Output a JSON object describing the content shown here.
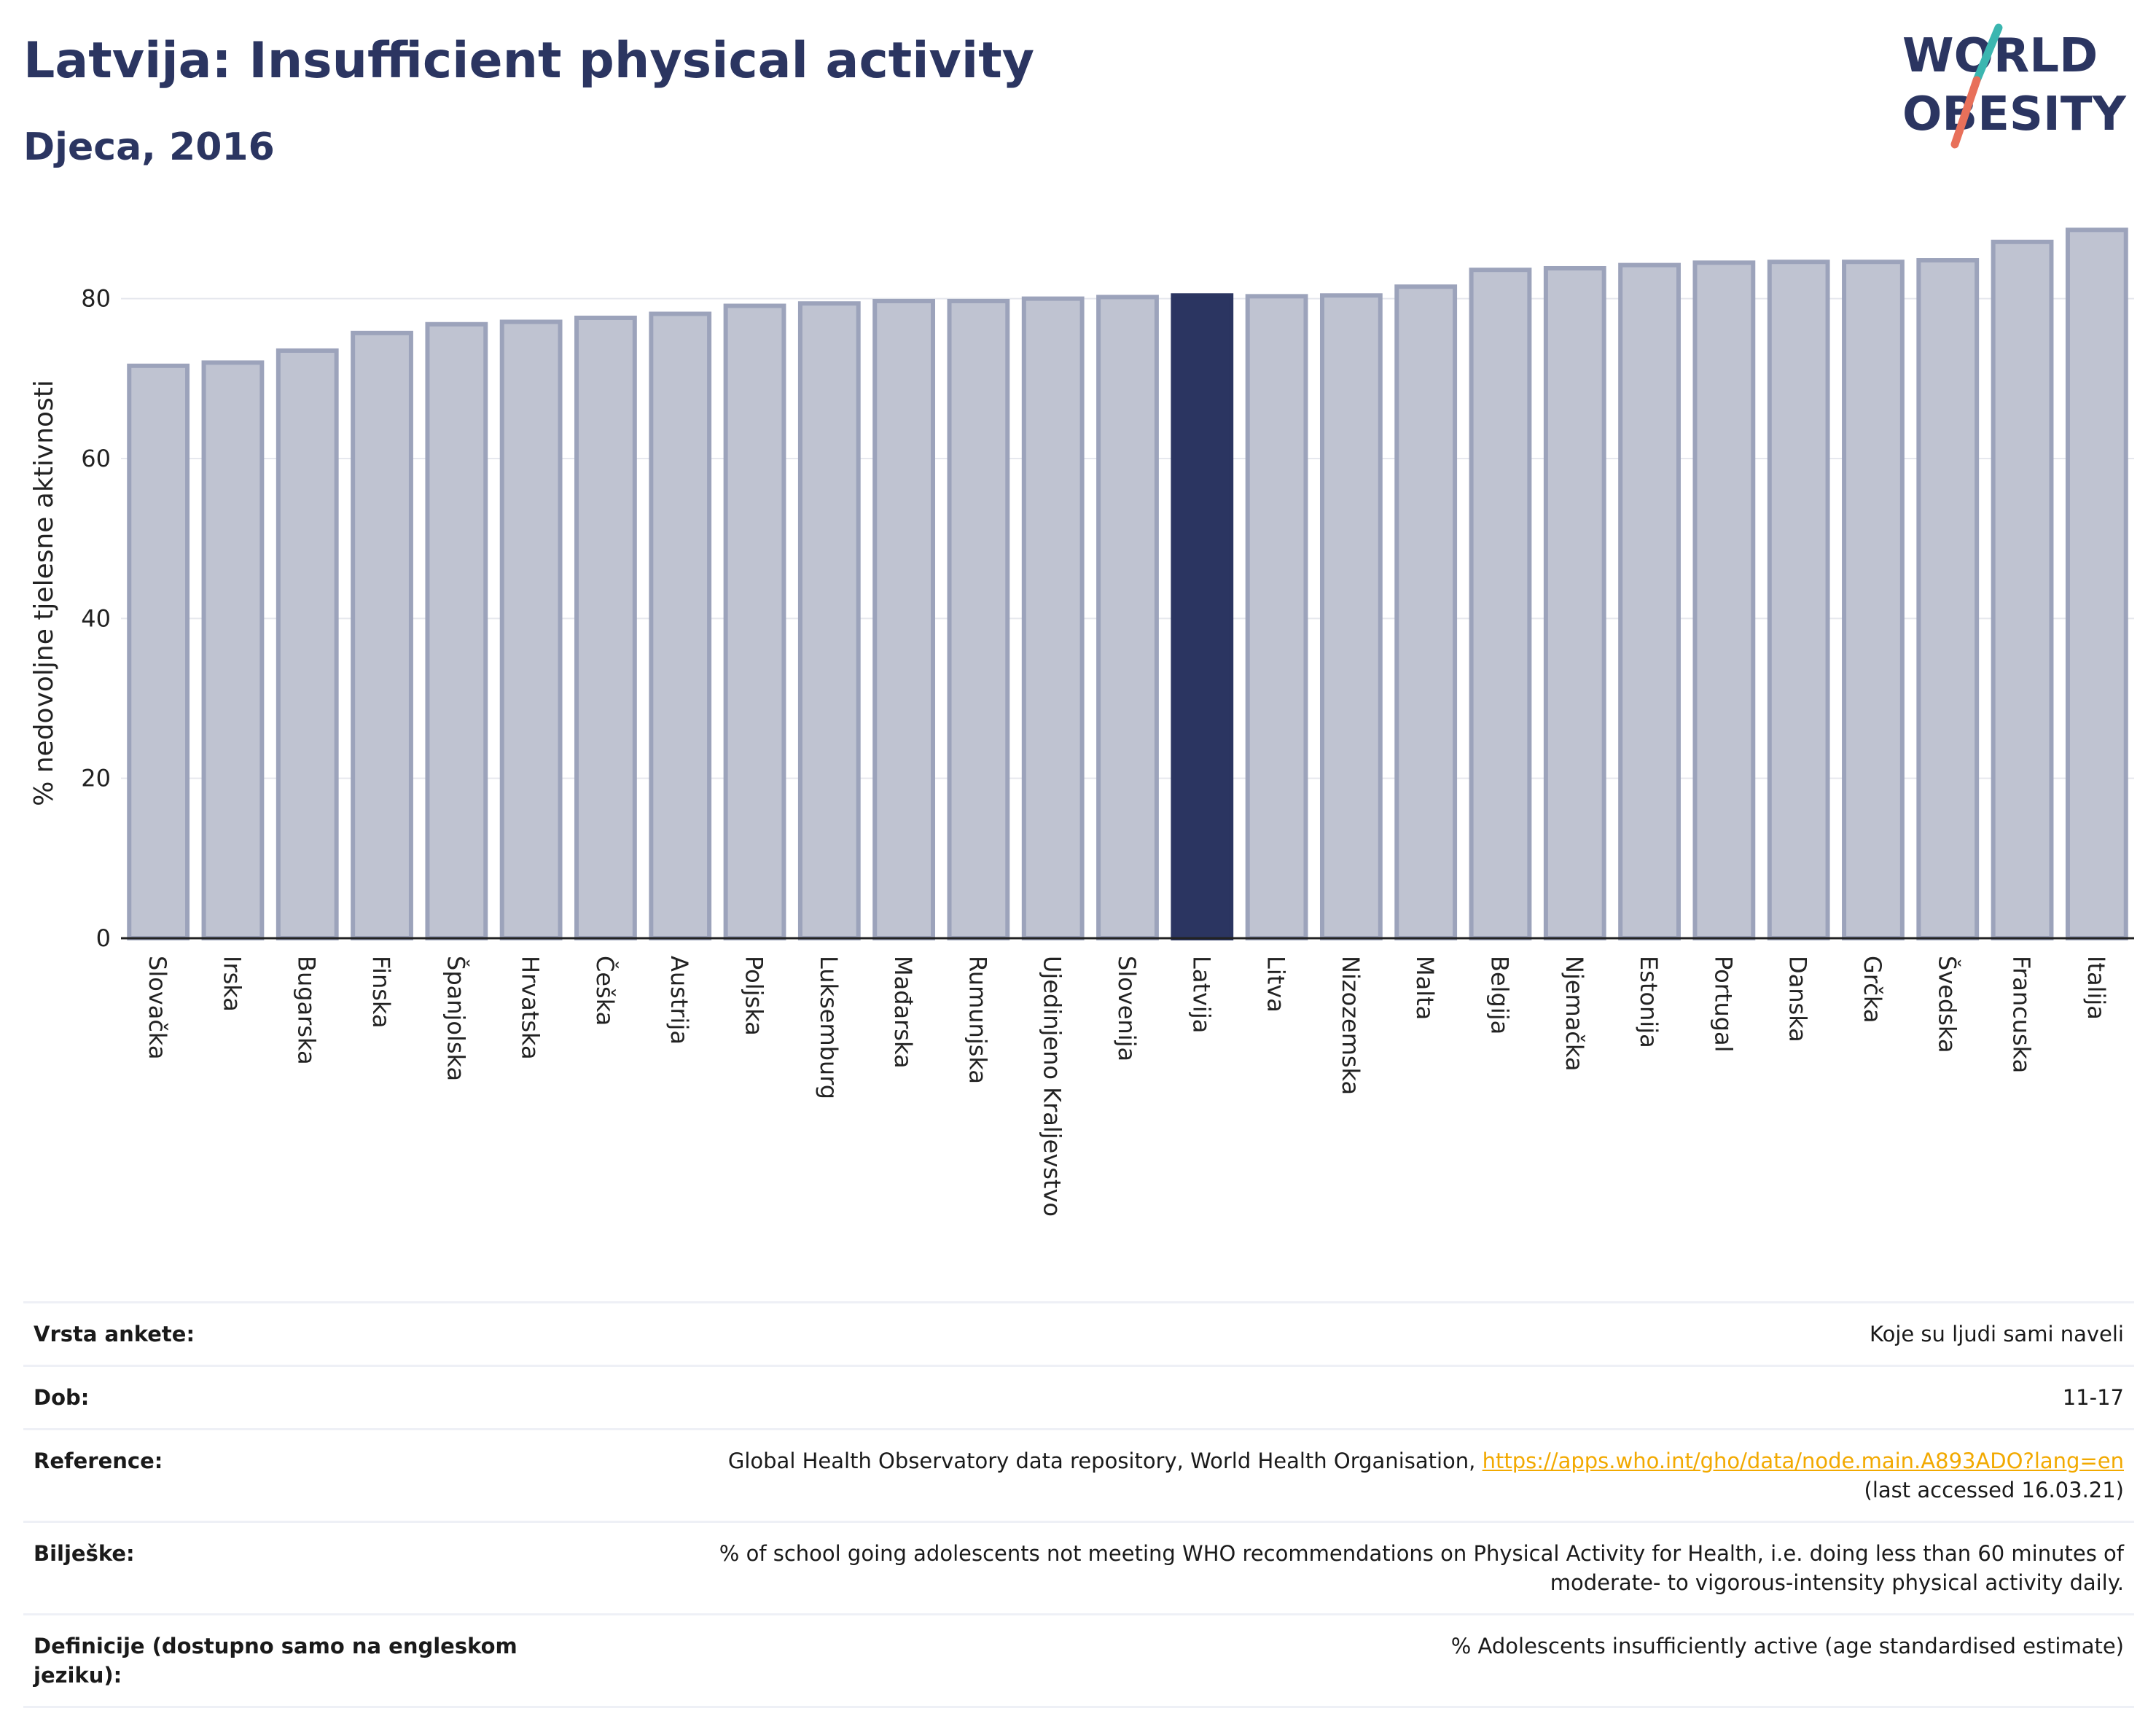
{
  "header": {
    "title": "Latvija: Insufficient physical activity",
    "subtitle": "Djeca, 2016"
  },
  "logo": {
    "line1": "WORLD",
    "line2": "OBESITY",
    "colors": {
      "text": "#2b3561",
      "slash_top": "#3bb6b0",
      "slash_bottom": "#e8705a"
    }
  },
  "colors": {
    "bar": "#bfc3d1",
    "bar_stroke": "#9ca3bb",
    "highlight": "#2b3561",
    "grid": "#e6e8ee",
    "axis": "#222222"
  },
  "chart_data": {
    "type": "bar",
    "ylabel": "% nedovoljne tjelesne aktivnosti",
    "xlabel": "",
    "ylim": [
      0,
      90
    ],
    "yticks": [
      0,
      20,
      40,
      60,
      80
    ],
    "grid": true,
    "highlight": "Latvija",
    "categories": [
      "Slovačka",
      "Irska",
      "Bugarska",
      "Finska",
      "Španjolska",
      "Hrvatska",
      "Češka",
      "Austrija",
      "Poljska",
      "Luksemburg",
      "Mađarska",
      "Rumunjska",
      "Ujedinjeno Kraljevstvo",
      "Slovenija",
      "Latvija",
      "Litva",
      "Nizozemska",
      "Malta",
      "Belgija",
      "Njemačka",
      "Estonija",
      "Portugal",
      "Danska",
      "Grčka",
      "Švedska",
      "Francuska",
      "Italija"
    ],
    "values": [
      71.6,
      72.0,
      73.5,
      75.7,
      76.8,
      77.1,
      77.6,
      78.1,
      79.1,
      79.4,
      79.7,
      79.7,
      80.0,
      80.2,
      80.4,
      80.3,
      80.4,
      81.5,
      83.6,
      83.8,
      84.2,
      84.5,
      84.6,
      84.6,
      84.8,
      87.1,
      88.6
    ]
  },
  "meta": {
    "survey_label": "Vrsta ankete:",
    "survey_value": "Koje su ljudi sami naveli",
    "age_label": "Dob:",
    "age_value": "11-17",
    "reference_label": "Reference:",
    "reference_text": "Global Health Observatory data repository, World Health Organisation, ",
    "reference_link": "https://apps.who.int/gho/data/node.main.A893ADO?lang=en",
    "reference_accessed": "(last accessed 16.03.21)",
    "notes_label": "Bilješke:",
    "notes_line1": "% of school going adolescents not meeting WHO recommendations on Physical Activity for Health, i.e. doing less than 60 minutes of",
    "notes_line2": "moderate- to vigorous-intensity physical activity daily.",
    "definition_label_line1": "Definicije (dostupno samo na engleskom",
    "definition_label_line2": "jeziku):",
    "definition_value": "% Adolescents insufficiently active (age standardised estimate)"
  }
}
